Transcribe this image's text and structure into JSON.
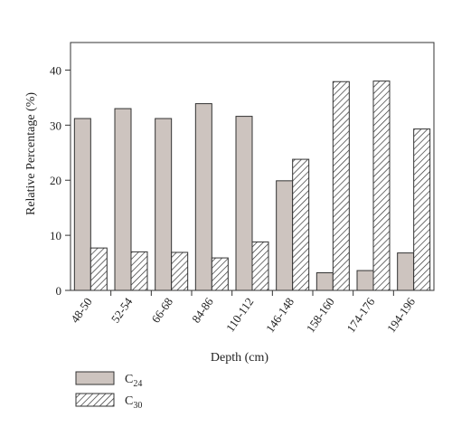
{
  "chart_data": {
    "type": "bar",
    "xlabel": "Depth (cm)",
    "ylabel": "Relative Percentage (%)",
    "ylim": [
      0,
      45
    ],
    "yticks": [
      0,
      10,
      20,
      30,
      40
    ],
    "categories": [
      "48-50",
      "52-54",
      "66-68",
      "84-86",
      "110-112",
      "146-148",
      "158-160",
      "174-176",
      "194-196"
    ],
    "series": [
      {
        "name": "C",
        "subscript": "24",
        "fill": "#cdc4bf",
        "pattern": "solid",
        "values": [
          31.2,
          33.0,
          31.2,
          33.9,
          31.6,
          19.9,
          3.2,
          3.6,
          6.8
        ]
      },
      {
        "name": "C",
        "subscript": "30",
        "fill": "#ffffff",
        "pattern": "diagonal-hatch",
        "values": [
          7.7,
          7.0,
          6.9,
          5.9,
          8.8,
          23.8,
          37.9,
          38.0,
          29.3
        ]
      }
    ],
    "grid": false,
    "legend_position": "bottom-left"
  }
}
